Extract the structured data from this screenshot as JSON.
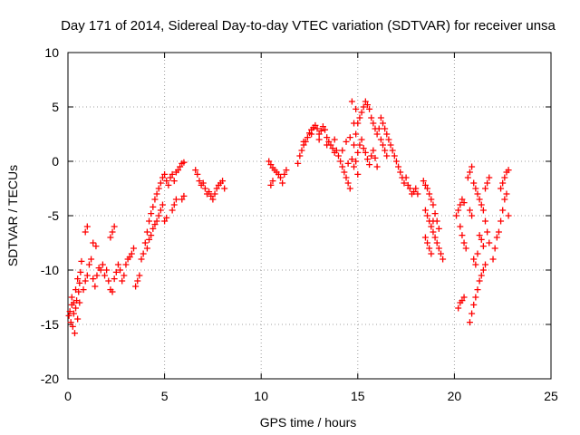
{
  "chart_data": {
    "type": "scatter",
    "title": "Day 171 of 2014, Sidereal Day-to-day VTEC variation (SDTVAR) for receiver unsa",
    "xlabel": "GPS time / hours",
    "ylabel": "SDTVAR / TECUs",
    "xlim": [
      0,
      25
    ],
    "ylim": [
      -20,
      10
    ],
    "xticks": [
      0,
      5,
      10,
      15,
      20,
      25
    ],
    "yticks": [
      -20,
      -15,
      -10,
      -5,
      0,
      5,
      10
    ],
    "grid": true,
    "marker": "+",
    "color": "#ff0000",
    "series": [
      {
        "name": "SDTVAR",
        "points": [
          [
            0.05,
            -14.2
          ],
          [
            0.1,
            -13.8
          ],
          [
            0.15,
            -14.8
          ],
          [
            0.2,
            -13.2
          ],
          [
            0.25,
            -15.2
          ],
          [
            0.3,
            -14.0
          ],
          [
            0.35,
            -15.8
          ],
          [
            0.4,
            -13.5
          ],
          [
            0.45,
            -12.8
          ],
          [
            0.5,
            -14.5
          ],
          [
            0.55,
            -12.0
          ],
          [
            0.6,
            -11.2
          ],
          [
            0.65,
            -10.2
          ],
          [
            0.7,
            -9.2
          ],
          [
            0.6,
            -13.0
          ],
          [
            0.5,
            -10.8
          ],
          [
            0.4,
            -11.8
          ],
          [
            0.3,
            -13.0
          ],
          [
            0.2,
            -12.5
          ],
          [
            0.8,
            -11.8
          ],
          [
            0.9,
            -11.0
          ],
          [
            1.0,
            -10.5
          ],
          [
            1.1,
            -9.5
          ],
          [
            1.2,
            -9.0
          ],
          [
            1.3,
            -10.8
          ],
          [
            1.4,
            -11.5
          ],
          [
            1.5,
            -10.5
          ],
          [
            1.6,
            -9.8
          ],
          [
            1.7,
            -10.0
          ],
          [
            1.8,
            -9.5
          ],
          [
            1.9,
            -10.5
          ],
          [
            2.0,
            -10.0
          ],
          [
            2.1,
            -11.0
          ],
          [
            2.2,
            -11.8
          ],
          [
            2.3,
            -12.0
          ],
          [
            2.4,
            -10.8
          ],
          [
            2.5,
            -10.2
          ],
          [
            2.6,
            -9.5
          ],
          [
            2.7,
            -10.0
          ],
          [
            2.8,
            -11.0
          ],
          [
            2.9,
            -10.5
          ],
          [
            3.0,
            -9.5
          ],
          [
            3.1,
            -9.0
          ],
          [
            0.9,
            -6.5
          ],
          [
            1.0,
            -6.0
          ],
          [
            1.3,
            -7.5
          ],
          [
            1.45,
            -7.8
          ],
          [
            2.2,
            -7.0
          ],
          [
            2.3,
            -6.5
          ],
          [
            2.4,
            -6.0
          ],
          [
            3.2,
            -8.8
          ],
          [
            3.3,
            -8.5
          ],
          [
            3.4,
            -8.0
          ],
          [
            3.5,
            -11.5
          ],
          [
            3.6,
            -11.0
          ],
          [
            3.7,
            -10.5
          ],
          [
            3.8,
            -9.0
          ],
          [
            3.9,
            -8.5
          ],
          [
            4.0,
            -7.5
          ],
          [
            4.1,
            -6.5
          ],
          [
            4.2,
            -5.5
          ],
          [
            4.3,
            -4.8
          ],
          [
            4.4,
            -4.2
          ],
          [
            4.5,
            -3.5
          ],
          [
            4.6,
            -3.0
          ],
          [
            4.7,
            -2.5
          ],
          [
            4.8,
            -2.0
          ],
          [
            4.9,
            -1.5
          ],
          [
            5.0,
            -1.2
          ],
          [
            5.1,
            -1.8
          ],
          [
            5.2,
            -2.2
          ],
          [
            5.3,
            -1.5
          ],
          [
            5.4,
            -1.2
          ],
          [
            5.5,
            -1.8
          ],
          [
            5.6,
            -1.0
          ],
          [
            5.7,
            -0.8
          ],
          [
            5.8,
            -0.5
          ],
          [
            5.9,
            -0.2
          ],
          [
            6.0,
            -0.1
          ],
          [
            4.1,
            -8.0
          ],
          [
            4.2,
            -7.2
          ],
          [
            4.3,
            -6.8
          ],
          [
            4.4,
            -6.2
          ],
          [
            4.5,
            -5.8
          ],
          [
            4.6,
            -5.5
          ],
          [
            4.7,
            -5.0
          ],
          [
            4.8,
            -4.5
          ],
          [
            4.9,
            -4.0
          ],
          [
            5.0,
            -5.5
          ],
          [
            5.1,
            -5.2
          ],
          [
            5.4,
            -4.5
          ],
          [
            5.5,
            -4.0
          ],
          [
            5.6,
            -3.5
          ],
          [
            5.9,
            -3.5
          ],
          [
            6.0,
            -3.2
          ],
          [
            6.6,
            -0.8
          ],
          [
            6.7,
            -1.2
          ],
          [
            6.8,
            -1.8
          ],
          [
            6.9,
            -2.2
          ],
          [
            7.0,
            -2.0
          ],
          [
            7.1,
            -2.5
          ],
          [
            7.2,
            -3.0
          ],
          [
            7.3,
            -2.8
          ],
          [
            7.4,
            -3.2
          ],
          [
            7.5,
            -3.5
          ],
          [
            7.6,
            -3.0
          ],
          [
            7.7,
            -2.5
          ],
          [
            7.8,
            -2.2
          ],
          [
            7.9,
            -2.0
          ],
          [
            8.0,
            -1.8
          ],
          [
            8.1,
            -2.5
          ],
          [
            10.4,
            0.0
          ],
          [
            10.5,
            -0.3
          ],
          [
            10.6,
            -0.6
          ],
          [
            10.7,
            -0.8
          ],
          [
            10.8,
            -1.0
          ],
          [
            10.9,
            -1.2
          ],
          [
            11.0,
            -1.5
          ],
          [
            11.1,
            -2.0
          ],
          [
            11.2,
            -1.2
          ],
          [
            11.3,
            -0.8
          ],
          [
            10.6,
            -1.8
          ],
          [
            10.5,
            -2.2
          ],
          [
            11.9,
            -0.2
          ],
          [
            12.0,
            0.5
          ],
          [
            12.1,
            1.0
          ],
          [
            12.2,
            1.5
          ],
          [
            12.3,
            1.8
          ],
          [
            12.4,
            2.2
          ],
          [
            12.5,
            2.6
          ],
          [
            12.6,
            2.9
          ],
          [
            12.7,
            3.1
          ],
          [
            12.8,
            3.3
          ],
          [
            12.9,
            3.0
          ],
          [
            13.0,
            2.5
          ],
          [
            13.1,
            2.8
          ],
          [
            13.2,
            3.2
          ],
          [
            13.3,
            2.9
          ],
          [
            13.4,
            2.2
          ],
          [
            13.5,
            1.8
          ],
          [
            13.6,
            1.5
          ],
          [
            13.7,
            1.2
          ],
          [
            13.8,
            0.8
          ],
          [
            13.9,
            1.0
          ],
          [
            14.0,
            0.5
          ],
          [
            14.1,
            0.0
          ],
          [
            14.2,
            -0.5
          ],
          [
            14.3,
            -1.0
          ],
          [
            14.4,
            -1.5
          ],
          [
            14.5,
            -2.0
          ],
          [
            14.6,
            -2.5
          ],
          [
            12.2,
            1.8
          ],
          [
            12.6,
            2.5
          ],
          [
            13.0,
            2.0
          ],
          [
            13.4,
            1.5
          ],
          [
            13.8,
            2.0
          ],
          [
            14.2,
            1.0
          ],
          [
            14.4,
            1.8
          ],
          [
            14.6,
            2.2
          ],
          [
            14.8,
            1.5
          ],
          [
            14.9,
            2.5
          ],
          [
            15.0,
            3.5
          ],
          [
            15.1,
            4.0
          ],
          [
            15.2,
            4.5
          ],
          [
            15.3,
            5.0
          ],
          [
            15.4,
            5.5
          ],
          [
            15.5,
            5.2
          ],
          [
            15.6,
            4.8
          ],
          [
            15.7,
            4.0
          ],
          [
            15.8,
            3.5
          ],
          [
            15.9,
            3.0
          ],
          [
            16.0,
            2.5
          ],
          [
            16.1,
            3.0
          ],
          [
            16.2,
            2.0
          ],
          [
            16.3,
            1.5
          ],
          [
            16.4,
            1.0
          ],
          [
            16.5,
            0.5
          ],
          [
            14.5,
            -0.2
          ],
          [
            14.7,
            0.2
          ],
          [
            14.8,
            -0.5
          ],
          [
            14.9,
            0.0
          ],
          [
            15.0,
            0.8
          ],
          [
            15.1,
            1.5
          ],
          [
            15.2,
            2.0
          ],
          [
            15.3,
            1.2
          ],
          [
            15.4,
            0.8
          ],
          [
            15.5,
            0.2
          ],
          [
            15.6,
            -0.3
          ],
          [
            15.7,
            0.5
          ],
          [
            15.8,
            1.0
          ],
          [
            15.9,
            0.3
          ],
          [
            16.0,
            -0.5
          ],
          [
            15.0,
            -1.2
          ],
          [
            14.8,
            3.5
          ],
          [
            14.7,
            5.5
          ],
          [
            14.9,
            4.8
          ],
          [
            16.2,
            4.0
          ],
          [
            16.3,
            3.5
          ],
          [
            16.4,
            3.0
          ],
          [
            16.5,
            2.5
          ],
          [
            16.6,
            2.0
          ],
          [
            16.7,
            1.5
          ],
          [
            16.8,
            1.0
          ],
          [
            16.9,
            0.5
          ],
          [
            17.0,
            0.0
          ],
          [
            17.1,
            -0.5
          ],
          [
            17.2,
            -1.0
          ],
          [
            17.3,
            -1.5
          ],
          [
            17.4,
            -2.0
          ],
          [
            17.5,
            -1.5
          ],
          [
            17.6,
            -2.2
          ],
          [
            17.7,
            -2.5
          ],
          [
            17.8,
            -3.0
          ],
          [
            17.9,
            -2.8
          ],
          [
            18.0,
            -2.5
          ],
          [
            18.1,
            -3.0
          ],
          [
            18.4,
            -1.8
          ],
          [
            18.5,
            -2.2
          ],
          [
            18.6,
            -2.5
          ],
          [
            18.7,
            -3.0
          ],
          [
            18.8,
            -3.5
          ],
          [
            18.9,
            -4.0
          ],
          [
            18.5,
            -4.5
          ],
          [
            18.6,
            -5.0
          ],
          [
            18.7,
            -5.5
          ],
          [
            18.8,
            -6.0
          ],
          [
            18.9,
            -6.5
          ],
          [
            19.0,
            -7.0
          ],
          [
            19.1,
            -7.5
          ],
          [
            19.2,
            -8.0
          ],
          [
            19.3,
            -8.5
          ],
          [
            19.4,
            -9.0
          ],
          [
            18.5,
            -7.0
          ],
          [
            18.6,
            -7.5
          ],
          [
            18.7,
            -8.0
          ],
          [
            18.8,
            -8.5
          ],
          [
            18.9,
            -5.5
          ],
          [
            19.0,
            -4.8
          ],
          [
            19.1,
            -5.5
          ],
          [
            19.2,
            -6.2
          ],
          [
            20.1,
            -5.0
          ],
          [
            20.2,
            -4.5
          ],
          [
            20.3,
            -4.0
          ],
          [
            20.4,
            -3.5
          ],
          [
            20.5,
            -3.8
          ],
          [
            20.3,
            -6.0
          ],
          [
            20.4,
            -6.8
          ],
          [
            20.5,
            -7.5
          ],
          [
            20.6,
            -8.0
          ],
          [
            20.7,
            -1.5
          ],
          [
            20.8,
            -1.0
          ],
          [
            20.9,
            -0.5
          ],
          [
            21.0,
            -2.0
          ],
          [
            21.1,
            -2.5
          ],
          [
            20.8,
            -4.5
          ],
          [
            20.9,
            -5.0
          ],
          [
            21.0,
            -9.0
          ],
          [
            21.1,
            -9.5
          ],
          [
            21.2,
            -8.5
          ],
          [
            20.2,
            -13.5
          ],
          [
            20.3,
            -13.0
          ],
          [
            20.4,
            -12.8
          ],
          [
            20.5,
            -12.5
          ],
          [
            20.8,
            -14.8
          ],
          [
            20.9,
            -14.0
          ],
          [
            21.0,
            -13.2
          ],
          [
            21.1,
            -12.5
          ],
          [
            21.2,
            -11.8
          ],
          [
            21.3,
            -11.0
          ],
          [
            21.4,
            -10.5
          ],
          [
            21.5,
            -10.0
          ],
          [
            21.6,
            -9.5
          ],
          [
            21.2,
            -3.0
          ],
          [
            21.3,
            -3.5
          ],
          [
            21.4,
            -4.0
          ],
          [
            21.5,
            -4.5
          ],
          [
            21.6,
            -5.5
          ],
          [
            21.7,
            -6.5
          ],
          [
            21.8,
            -7.5
          ],
          [
            21.3,
            -6.8
          ],
          [
            21.4,
            -7.2
          ],
          [
            21.5,
            -7.8
          ],
          [
            21.6,
            -2.5
          ],
          [
            21.7,
            -2.0
          ],
          [
            21.8,
            -1.5
          ],
          [
            22.0,
            -9.0
          ],
          [
            22.1,
            -8.0
          ],
          [
            22.2,
            -7.0
          ],
          [
            22.3,
            -6.5
          ],
          [
            22.4,
            -5.5
          ],
          [
            22.5,
            -4.5
          ],
          [
            22.6,
            -3.5
          ],
          [
            22.7,
            -3.0
          ],
          [
            22.8,
            -5.0
          ],
          [
            22.4,
            -2.5
          ],
          [
            22.5,
            -2.0
          ],
          [
            22.6,
            -1.5
          ],
          [
            22.7,
            -1.0
          ],
          [
            22.8,
            -0.8
          ]
        ]
      }
    ]
  }
}
